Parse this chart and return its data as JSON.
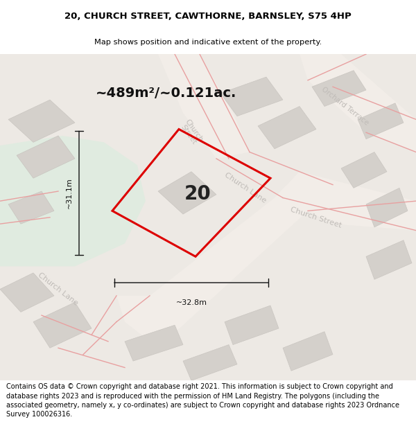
{
  "title_line1": "20, CHURCH STREET, CAWTHORNE, BARNSLEY, S75 4HP",
  "title_line2": "Map shows position and indicative extent of the property.",
  "area_text": "~489m²/~0.121ac.",
  "label_20": "20",
  "dim_vertical": "~31.1m",
  "dim_horizontal": "~32.8m",
  "footer_text": "Contains OS data © Crown copyright and database right 2021. This information is subject to Crown copyright and database rights 2023 and is reproduced with the permission of HM Land Registry. The polygons (including the associated geometry, namely x, y co-ordinates) are subject to Crown copyright and database rights 2023 Ordnance Survey 100026316.",
  "map_bg": "#ede9e4",
  "green_color": "#e0ebe0",
  "building_color": "#d4d0cb",
  "road_line_color": "#e8a0a0",
  "property_color": "#dd0000",
  "street_label_color": "#c0bcb8",
  "dim_color": "#111111",
  "white_bg": "#ffffff",
  "title_fs": 9.5,
  "subtitle_fs": 8.2,
  "area_fs": 14,
  "label_fs": 20,
  "dim_fs": 8,
  "street_fs": 8,
  "footer_fs": 7
}
